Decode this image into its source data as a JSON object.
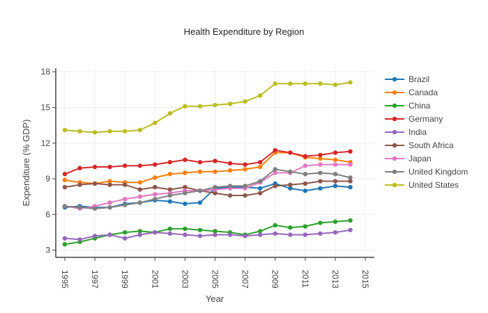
{
  "chart_data": {
    "type": "line",
    "title": "Health Expenditure by Region",
    "xlabel": "Year",
    "ylabel": "Expenditure (% GDP)",
    "x": [
      1995,
      1996,
      1997,
      1998,
      1999,
      2000,
      2001,
      2002,
      2003,
      2004,
      2005,
      2006,
      2007,
      2008,
      2009,
      2010,
      2011,
      2012,
      2013,
      2014
    ],
    "xlim": [
      1994.4,
      2015.6
    ],
    "ylim": [
      2.4,
      18.3
    ],
    "x_ticks": [
      1995,
      1997,
      1999,
      2001,
      2003,
      2005,
      2007,
      2009,
      2011,
      2013,
      2015
    ],
    "y_ticks": [
      3,
      6,
      9,
      12,
      15,
      18
    ],
    "grid": true,
    "legend_position": "right",
    "series": [
      {
        "name": "Brazil",
        "color": "#1f77b4",
        "values": [
          6.6,
          6.7,
          6.6,
          6.6,
          6.9,
          7.0,
          7.2,
          7.1,
          6.9,
          7.0,
          8.2,
          8.3,
          8.3,
          8.2,
          8.6,
          8.2,
          8.0,
          8.2,
          8.4,
          8.3
        ]
      },
      {
        "name": "Canada",
        "color": "#ff7f0e",
        "values": [
          8.9,
          8.7,
          8.6,
          8.8,
          8.7,
          8.7,
          9.1,
          9.4,
          9.5,
          9.6,
          9.6,
          9.7,
          9.8,
          10.0,
          11.2,
          11.2,
          10.8,
          10.7,
          10.6,
          10.4
        ]
      },
      {
        "name": "China",
        "color": "#2ca02c",
        "values": [
          3.5,
          3.7,
          4.0,
          4.3,
          4.5,
          4.6,
          4.5,
          4.8,
          4.8,
          4.7,
          4.6,
          4.5,
          4.3,
          4.6,
          5.1,
          4.9,
          5.0,
          5.3,
          5.4,
          5.5
        ]
      },
      {
        "name": "Germany",
        "color": "#d62728",
        "values": [
          9.4,
          9.9,
          10.0,
          10.0,
          10.1,
          10.1,
          10.2,
          10.4,
          10.6,
          10.4,
          10.5,
          10.3,
          10.2,
          10.4,
          11.4,
          11.2,
          10.9,
          11.0,
          11.2,
          11.3
        ]
      },
      {
        "name": "India",
        "color": "#9467bd",
        "values": [
          4.0,
          3.9,
          4.2,
          4.3,
          4.0,
          4.3,
          4.5,
          4.4,
          4.3,
          4.2,
          4.3,
          4.3,
          4.2,
          4.3,
          4.4,
          4.3,
          4.3,
          4.4,
          4.5,
          4.7
        ]
      },
      {
        "name": "South Africa",
        "color": "#8c564b",
        "values": [
          8.3,
          8.5,
          8.6,
          8.5,
          8.5,
          8.1,
          8.3,
          8.1,
          8.3,
          8.0,
          7.8,
          7.6,
          7.6,
          7.8,
          8.4,
          8.5,
          8.6,
          8.8,
          8.8,
          8.8
        ]
      },
      {
        "name": "Japan",
        "color": "#e377c2",
        "values": [
          6.7,
          6.5,
          6.7,
          7.0,
          7.3,
          7.5,
          7.7,
          7.8,
          8.0,
          8.0,
          8.1,
          8.2,
          8.2,
          8.7,
          9.5,
          9.5,
          10.1,
          10.2,
          10.2,
          10.2
        ]
      },
      {
        "name": "United Kingdom",
        "color": "#7f7f7f",
        "values": [
          6.7,
          6.6,
          6.5,
          6.6,
          6.8,
          7.0,
          7.3,
          7.6,
          7.8,
          8.0,
          8.3,
          8.4,
          8.4,
          8.8,
          9.8,
          9.6,
          9.4,
          9.5,
          9.4,
          9.1
        ]
      },
      {
        "name": "United States",
        "color": "#bcbd22",
        "values": [
          13.1,
          13.0,
          12.9,
          13.0,
          13.0,
          13.1,
          13.7,
          14.5,
          15.1,
          15.1,
          15.2,
          15.3,
          15.5,
          16.0,
          17.0,
          17.0,
          17.0,
          17.0,
          16.9,
          17.1
        ]
      }
    ]
  }
}
